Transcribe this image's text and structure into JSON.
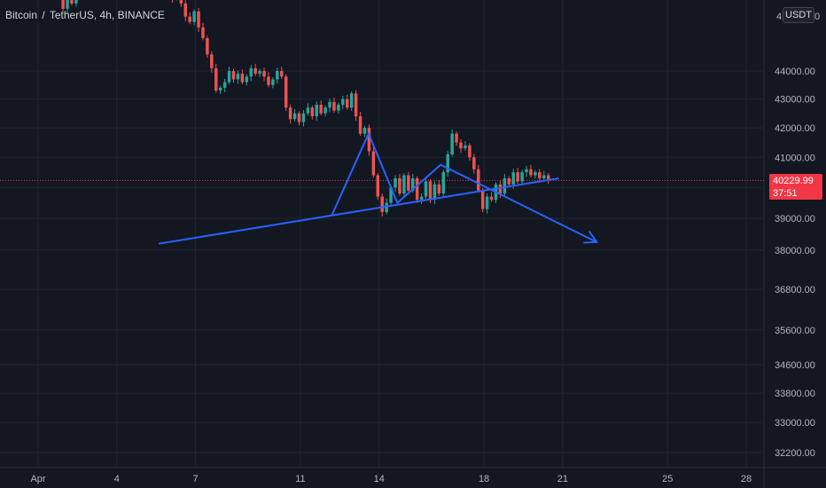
{
  "header": {
    "symbol": "Bitcoin",
    "separator": "/",
    "quote": "TetherUS",
    "interval": "4h",
    "exchange": "BINANCE"
  },
  "currency_badge": "USDT",
  "last_price": {
    "value": "40229.99",
    "countdown": "37:51",
    "color": "#f23645"
  },
  "colors": {
    "up": "#26a69a",
    "down": "#ef5350",
    "drawing": "#2962ff",
    "grid": "#1f2430",
    "background": "#131722"
  },
  "chart_data": {
    "type": "candlestick",
    "y_scale": "log",
    "ylim": [
      31800,
      48500
    ],
    "grid": true,
    "y_ticks": [
      {
        "value": 44000,
        "label": "44000.00"
      },
      {
        "value": 43000,
        "label": "43000.00"
      },
      {
        "value": 42000,
        "label": "42000.00"
      },
      {
        "value": 41000,
        "label": "41000.00"
      },
      {
        "value": 40000,
        "label": "40000.00"
      },
      {
        "value": 39000,
        "label": "39000.00"
      },
      {
        "value": 38000,
        "label": "38000.00"
      },
      {
        "value": 36800,
        "label": "36800.00"
      },
      {
        "value": 35600,
        "label": "35600.00"
      },
      {
        "value": 34600,
        "label": "34600.00"
      },
      {
        "value": 33800,
        "label": "33800.00"
      },
      {
        "value": 33000,
        "label": "33000.00"
      },
      {
        "value": 32200,
        "label": "32200.00"
      }
    ],
    "top_cut_labels": [
      {
        "value": 48000,
        "label": "4"
      },
      {
        "value": 48000,
        "label": "0"
      }
    ],
    "x_ticks": [
      {
        "day": 1,
        "label": "Apr"
      },
      {
        "day": 4,
        "label": "4"
      },
      {
        "day": 7,
        "label": "7"
      },
      {
        "day": 11,
        "label": "11"
      },
      {
        "day": 14,
        "label": "14"
      },
      {
        "day": 18,
        "label": "18"
      },
      {
        "day": 21,
        "label": "21"
      },
      {
        "day": 25,
        "label": "25"
      },
      {
        "day": 28,
        "label": "28"
      }
    ],
    "start_day": 0.95,
    "candle_period_days": 0.1667,
    "last_price": 40229.99,
    "closes": [
      47600,
      47200,
      47400,
      47000,
      46800,
      46900,
      46300,
      46700,
      46500,
      46900,
      47300,
      47100,
      47500,
      47900,
      47600,
      48100,
      48300,
      47900,
      48200,
      48400,
      48000,
      47800,
      48100,
      47700,
      47500,
      47700,
      48000,
      47700,
      47400,
      47600,
      47200,
      46700,
      46900,
      46500,
      46000,
      45800,
      46200,
      45600,
      45200,
      44600,
      44100,
      43300,
      43400,
      43600,
      44000,
      43700,
      43900,
      43600,
      43800,
      44100,
      43900,
      44000,
      43800,
      43500,
      43700,
      44000,
      43800,
      42700,
      42300,
      42500,
      42200,
      42500,
      42700,
      42400,
      42800,
      42500,
      42700,
      42900,
      42600,
      42800,
      43000,
      42700,
      43200,
      42400,
      41800,
      42000,
      41200,
      40400,
      39700,
      39200,
      39500,
      40000,
      40300,
      39800,
      40400,
      39900,
      40300,
      39600,
      39700,
      40200,
      39600,
      40100,
      39800,
      40500,
      41100,
      41800,
      41500,
      41300,
      41400,
      41000,
      40600,
      39900,
      39300,
      39700,
      39600,
      40100,
      39800,
      40300,
      40100,
      40500,
      40200,
      40500,
      40600,
      40400,
      40500,
      40300,
      40400,
      40229.99
    ],
    "drawings": [
      {
        "name": "support-trendline",
        "points": [
          [
            5.6,
            38200
          ],
          [
            20.85,
            40300
          ]
        ]
      },
      {
        "name": "head-and-shoulders-pattern",
        "points": [
          [
            12.2,
            39100
          ],
          [
            13.6,
            41800
          ],
          [
            14.7,
            39500
          ],
          [
            16.35,
            40750
          ],
          [
            22.3,
            38250
          ]
        ]
      }
    ]
  }
}
